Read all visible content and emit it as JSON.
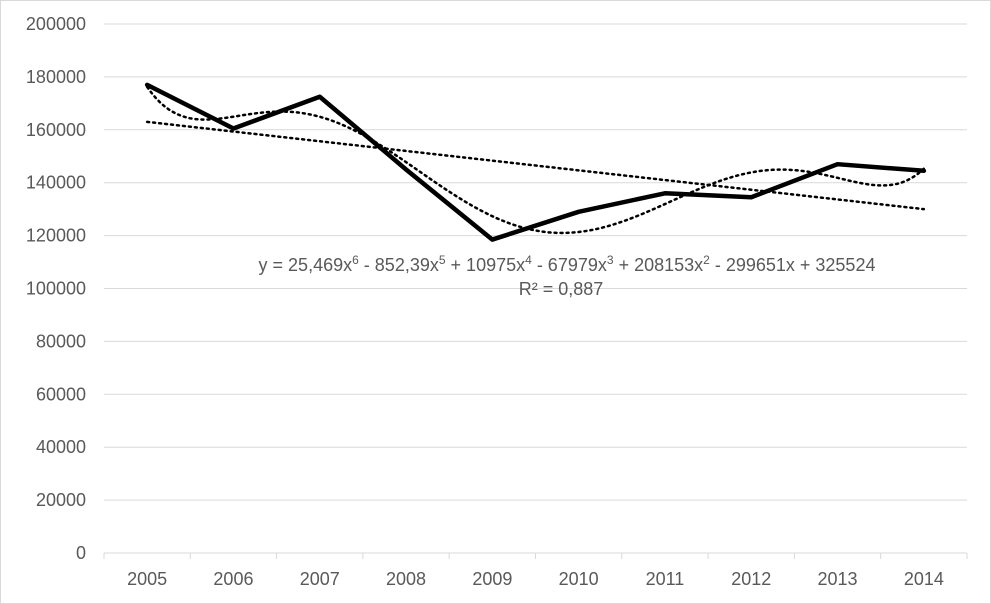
{
  "chart_data": {
    "type": "line",
    "title": "",
    "xlabel": "",
    "ylabel": "",
    "categories": [
      "2005",
      "2006",
      "2007",
      "2008",
      "2009",
      "2010",
      "2011",
      "2012",
      "2013",
      "2014"
    ],
    "series": [
      {
        "values": [
          177000,
          160500,
          172500,
          145000,
          118500,
          129000,
          136000,
          134500,
          147000,
          144500
        ],
        "color": "#000000",
        "style": "solid"
      }
    ],
    "trendlines": [
      {
        "kind": "linear",
        "style": "dotted",
        "color": "#000000",
        "start": 163000,
        "end": 130000
      },
      {
        "kind": "polynomial",
        "order": 6,
        "style": "dotted",
        "color": "#000000",
        "coefficients": [
          25.469,
          -852.39,
          10975,
          -67979,
          208153,
          -299651,
          325524
        ],
        "equation": {
          "parts": [
            {
              "t": "y = 25,469x"
            },
            {
              "sup": "6"
            },
            {
              "t": " - 852,39x"
            },
            {
              "sup": "5"
            },
            {
              "t": " + 10975x"
            },
            {
              "sup": "4"
            },
            {
              "t": " - 67979x"
            },
            {
              "sup": "3"
            },
            {
              "t": " + 208153x"
            },
            {
              "sup": "2"
            },
            {
              "t": " - 299651x + 325524"
            }
          ]
        },
        "r_squared_label": "R² = 0,887"
      }
    ],
    "ylim": [
      0,
      200000
    ],
    "yticks": [
      "0",
      "20000",
      "40000",
      "60000",
      "80000",
      "100000",
      "120000",
      "140000",
      "160000",
      "180000",
      "200000"
    ],
    "grid": true,
    "legend": "none"
  }
}
